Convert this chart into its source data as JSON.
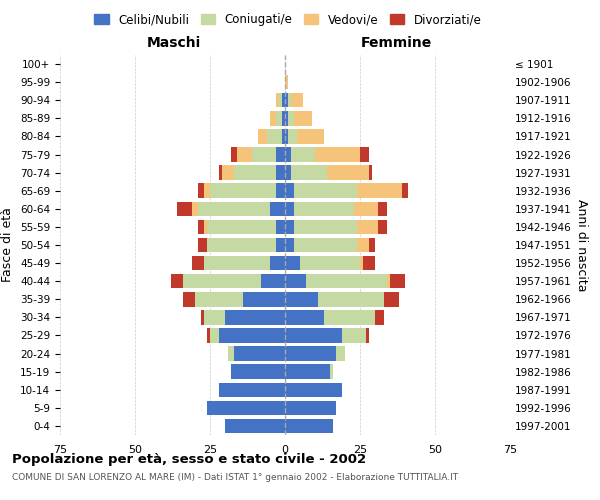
{
  "age_groups": [
    "0-4",
    "5-9",
    "10-14",
    "15-19",
    "20-24",
    "25-29",
    "30-34",
    "35-39",
    "40-44",
    "45-49",
    "50-54",
    "55-59",
    "60-64",
    "65-69",
    "70-74",
    "75-79",
    "80-84",
    "85-89",
    "90-94",
    "95-99",
    "100+"
  ],
  "birth_years": [
    "1997-2001",
    "1992-1996",
    "1987-1991",
    "1982-1986",
    "1977-1981",
    "1972-1976",
    "1967-1971",
    "1962-1966",
    "1957-1961",
    "1952-1956",
    "1947-1951",
    "1942-1946",
    "1937-1941",
    "1932-1936",
    "1927-1931",
    "1922-1926",
    "1917-1921",
    "1912-1916",
    "1907-1911",
    "1902-1906",
    "≤ 1901"
  ],
  "male": {
    "celibe": [
      20,
      26,
      22,
      18,
      17,
      22,
      20,
      14,
      8,
      5,
      3,
      3,
      5,
      3,
      3,
      3,
      1,
      1,
      1,
      0,
      0
    ],
    "coniugato": [
      0,
      0,
      0,
      0,
      2,
      3,
      7,
      16,
      26,
      22,
      23,
      23,
      24,
      22,
      14,
      8,
      5,
      2,
      1,
      0,
      0
    ],
    "vedovo": [
      0,
      0,
      0,
      0,
      0,
      0,
      0,
      0,
      0,
      0,
      0,
      1,
      2,
      2,
      4,
      5,
      3,
      2,
      1,
      0,
      0
    ],
    "divorziato": [
      0,
      0,
      0,
      0,
      0,
      1,
      1,
      4,
      4,
      4,
      3,
      2,
      5,
      2,
      1,
      2,
      0,
      0,
      0,
      0,
      0
    ]
  },
  "female": {
    "nubile": [
      16,
      17,
      19,
      15,
      17,
      19,
      13,
      11,
      7,
      5,
      3,
      3,
      3,
      3,
      2,
      2,
      1,
      1,
      1,
      0,
      0
    ],
    "coniugata": [
      0,
      0,
      0,
      1,
      3,
      8,
      17,
      22,
      27,
      20,
      21,
      21,
      20,
      21,
      12,
      8,
      3,
      2,
      1,
      0,
      0
    ],
    "vedova": [
      0,
      0,
      0,
      0,
      0,
      0,
      0,
      0,
      1,
      1,
      4,
      7,
      8,
      15,
      14,
      15,
      9,
      6,
      4,
      1,
      0
    ],
    "divorziata": [
      0,
      0,
      0,
      0,
      0,
      1,
      3,
      5,
      5,
      4,
      2,
      3,
      3,
      2,
      1,
      3,
      0,
      0,
      0,
      0,
      0
    ]
  },
  "colors": {
    "celibe": "#4472c4",
    "coniugato": "#c5d9a3",
    "vedovo": "#f5c47a",
    "divorziato": "#c0392b"
  },
  "xlim": 75,
  "title": "Popolazione per età, sesso e stato civile - 2002",
  "subtitle": "COMUNE DI SAN LORENZO AL MARE (IM) - Dati ISTAT 1° gennaio 2002 - Elaborazione TUTTITALIA.IT",
  "xlabel_left": "Maschi",
  "xlabel_right": "Femmine",
  "ylabel_left": "Fasce di età",
  "ylabel_right": "Anni di nascita",
  "bg_color": "#ffffff",
  "grid_color": "#cccccc"
}
